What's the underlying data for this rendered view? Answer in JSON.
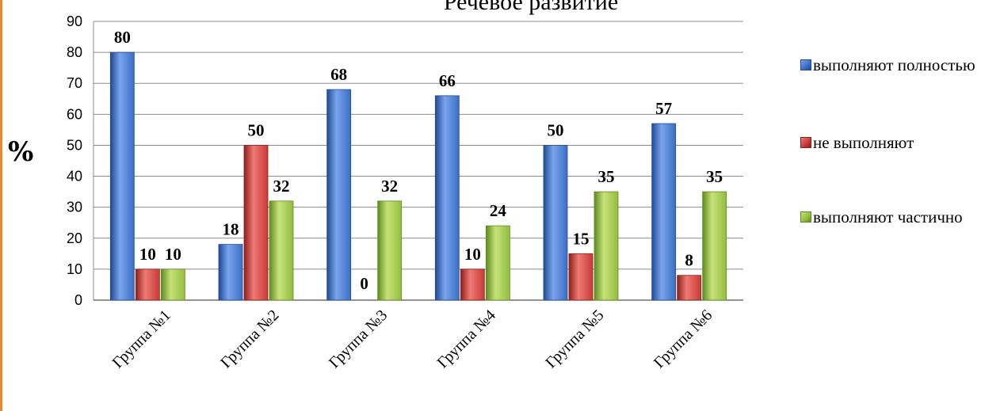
{
  "chart_data": {
    "type": "bar",
    "title": "Речевое развитие",
    "xlabel": "",
    "ylabel": "%",
    "ylim": [
      0,
      90
    ],
    "yticks": [
      0,
      10,
      20,
      30,
      40,
      50,
      60,
      70,
      80,
      90
    ],
    "grid": true,
    "legend_position": "right",
    "categories": [
      "Группа №1",
      "Группа №2",
      "Группа №3",
      "Группа №4",
      "Группа №5",
      "Группа №6"
    ],
    "series": [
      {
        "name": "выполняют полностью",
        "color": "#3a6fc4",
        "values": [
          80,
          18,
          68,
          66,
          50,
          57
        ]
      },
      {
        "name": "не выполняют",
        "color": "#c83a36",
        "values": [
          10,
          50,
          0,
          10,
          15,
          8
        ]
      },
      {
        "name": "выполняют частично",
        "color": "#93bd3f",
        "values": [
          10,
          32,
          32,
          24,
          35,
          35
        ]
      }
    ]
  }
}
